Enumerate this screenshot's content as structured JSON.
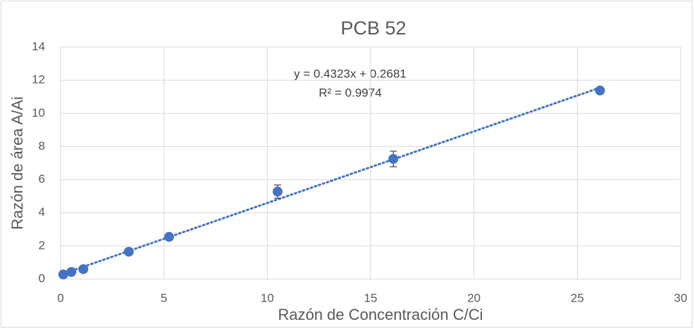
{
  "chart_data": {
    "type": "scatter",
    "title": "PCB 52",
    "x_label": "Razón de Concentración C/Ci",
    "y_label": "Razón de área A/Ai",
    "series": [
      {
        "name": "PCB 52",
        "color": "#4472c4",
        "x": [
          0.13,
          0.52,
          1.1,
          3.3,
          5.25,
          10.5,
          16.1,
          26.1
        ],
        "values": [
          0.28,
          0.43,
          0.6,
          1.65,
          2.55,
          5.28,
          7.25,
          11.38
        ],
        "errors": [
          0.05,
          0.05,
          0.05,
          0.08,
          0.1,
          0.4,
          0.47,
          0.15
        ]
      }
    ],
    "trendline": {
      "slope": 0.4323,
      "intercept": 0.2681,
      "style": "dotted"
    },
    "annotations": [
      "y = 0.4323x + 0.2681",
      "R² = 0.9974"
    ],
    "xlim": [
      0,
      30
    ],
    "xticks": [
      0,
      5,
      10,
      15,
      20,
      25,
      30
    ],
    "ylim": [
      0,
      14
    ],
    "yticks": [
      0,
      2,
      4,
      6,
      8,
      10,
      12,
      14
    ],
    "grid": true
  }
}
